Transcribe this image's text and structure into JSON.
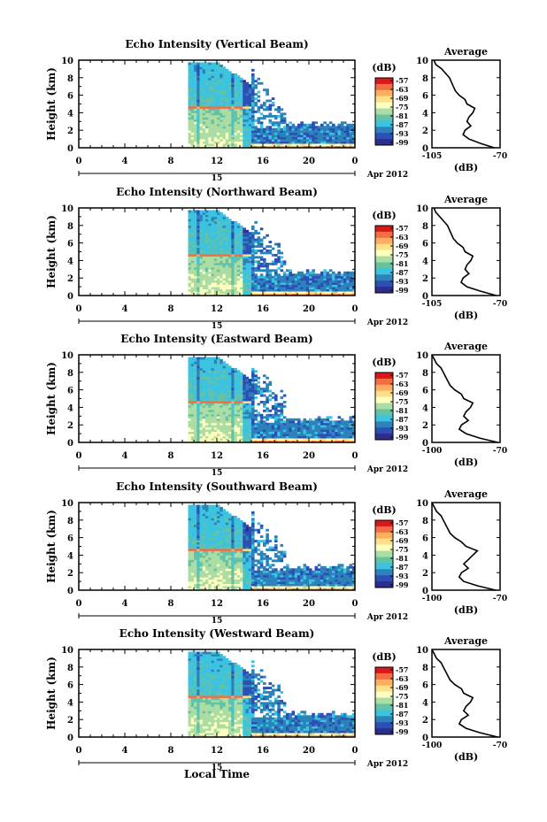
{
  "figure": {
    "date_label": "Apr 2012",
    "day_label": "15",
    "xlabel_bottom": "Local Time",
    "colorbar_unit": "(dB)",
    "colorbar_ticks": [
      "-57",
      "-63",
      "-69",
      "-75",
      "-81",
      "-87",
      "-93",
      "-99"
    ],
    "colorbar_colors": [
      "#d7191c",
      "#f46d43",
      "#fdae61",
      "#fee08b",
      "#ffffbf",
      "#abdda4",
      "#66c2a5",
      "#3cc3e0",
      "#2b83ba",
      "#2c4fb6",
      "#2d2d8c"
    ]
  },
  "chart_data": [
    {
      "type": "heatmap",
      "title": "Echo Intensity (Vertical Beam)",
      "ylabel": "Height (km)",
      "xlim": [
        0,
        24
      ],
      "ylim": [
        0,
        10
      ],
      "xticks": [
        "0",
        "4",
        "8",
        "12",
        "16",
        "20",
        "0"
      ],
      "yticks": [
        "0",
        "2",
        "4",
        "6",
        "8",
        "10"
      ],
      "description_data": "echo from ~9.5 LT to 24 LT; strongest below 4.5 km between 9.5 and 15 LT",
      "average": {
        "title": "Average",
        "xlabel": "(dB)",
        "xlim": [
          -105,
          -70
        ],
        "xticks": [
          "-105",
          "-70"
        ],
        "yticks": [
          "0",
          "2",
          "4",
          "6",
          "8",
          "10"
        ],
        "height_km": [
          0,
          0.5,
          1,
          1.5,
          2,
          2.5,
          3,
          3.5,
          4,
          4.5,
          5,
          5.5,
          6,
          6.5,
          7,
          7.5,
          8,
          8.5,
          9,
          9.5,
          10
        ],
        "db": [
          -73,
          -80,
          -86,
          -89,
          -88,
          -85,
          -87,
          -86,
          -84,
          -83,
          -87,
          -88,
          -91,
          -93,
          -94,
          -95,
          -96,
          -98,
          -100,
          -103,
          -104
        ]
      }
    },
    {
      "type": "heatmap",
      "title": "Echo Intensity (Northward Beam)",
      "ylabel": "Height (km)",
      "xlim": [
        0,
        24
      ],
      "ylim": [
        0,
        10
      ],
      "xticks": [
        "0",
        "4",
        "8",
        "12",
        "16",
        "20",
        "0"
      ],
      "yticks": [
        "0",
        "2",
        "4",
        "6",
        "8",
        "10"
      ],
      "average": {
        "title": "Average",
        "xlabel": "(dB)",
        "xlim": [
          -105,
          -70
        ],
        "xticks": [
          "-105",
          "-70"
        ],
        "yticks": [
          "0",
          "2",
          "4",
          "6",
          "8",
          "10"
        ],
        "height_km": [
          0,
          0.5,
          1,
          1.5,
          2,
          2.5,
          3,
          3.5,
          4,
          4.5,
          5,
          5.5,
          6,
          6.5,
          7,
          7.5,
          8,
          8.5,
          9,
          9.5,
          10
        ],
        "db": [
          -72,
          -80,
          -87,
          -90,
          -89,
          -86,
          -88,
          -87,
          -85,
          -84,
          -88,
          -89,
          -92,
          -94,
          -95,
          -96,
          -97,
          -99,
          -101,
          -103,
          -104
        ]
      }
    },
    {
      "type": "heatmap",
      "title": "Echo Intensity (Eastward Beam)",
      "ylabel": "Height (km)",
      "xlim": [
        0,
        24
      ],
      "ylim": [
        0,
        10
      ],
      "xticks": [
        "0",
        "4",
        "8",
        "12",
        "16",
        "20",
        "0"
      ],
      "yticks": [
        "0",
        "2",
        "4",
        "6",
        "8",
        "10"
      ],
      "average": {
        "title": "Average",
        "xlabel": "(dB)",
        "xlim": [
          -100,
          -70
        ],
        "xticks": [
          "-100",
          "-70"
        ],
        "yticks": [
          "0",
          "2",
          "4",
          "6",
          "8",
          "10"
        ],
        "height_km": [
          0,
          0.5,
          1,
          1.5,
          2,
          2.5,
          3,
          3.5,
          4,
          4.5,
          5,
          5.5,
          6,
          6.5,
          7,
          7.5,
          8,
          8.5,
          9,
          9.5,
          10
        ],
        "db": [
          -71,
          -79,
          -85,
          -88,
          -87,
          -84,
          -86,
          -85,
          -83,
          -82,
          -86,
          -87,
          -90,
          -92,
          -93,
          -94,
          -95,
          -96,
          -98,
          -99,
          -100
        ]
      }
    },
    {
      "type": "heatmap",
      "title": "Echo Intensity (Southward Beam)",
      "ylabel": "Height (km)",
      "xlim": [
        0,
        24
      ],
      "ylim": [
        0,
        10
      ],
      "xticks": [
        "0",
        "4",
        "8",
        "12",
        "16",
        "20",
        "0"
      ],
      "yticks": [
        "0",
        "2",
        "4",
        "6",
        "8",
        "10"
      ],
      "average": {
        "title": "Average",
        "xlabel": "(dB)",
        "xlim": [
          -100,
          -70
        ],
        "xticks": [
          "-100",
          "-70"
        ],
        "yticks": [
          "0",
          "2",
          "4",
          "6",
          "8",
          "10"
        ],
        "height_km": [
          0,
          0.5,
          1,
          1.5,
          2,
          2.5,
          3,
          3.5,
          4,
          4.5,
          5,
          5.5,
          6,
          6.5,
          7,
          7.5,
          8,
          8.5,
          9,
          9.5,
          10
        ],
        "db": [
          -72,
          -80,
          -86,
          -88,
          -87,
          -84,
          -86,
          -84,
          -82,
          -80,
          -85,
          -87,
          -90,
          -92,
          -93,
          -94,
          -95,
          -96,
          -98,
          -99,
          -100
        ]
      }
    },
    {
      "type": "heatmap",
      "title": "Echo Intensity (Westward Beam)",
      "ylabel": "Height (km)",
      "xlim": [
        0,
        24
      ],
      "ylim": [
        0,
        10
      ],
      "xticks": [
        "0",
        "4",
        "8",
        "12",
        "16",
        "20",
        "0"
      ],
      "yticks": [
        "0",
        "2",
        "4",
        "6",
        "8",
        "10"
      ],
      "average": {
        "title": "Average",
        "xlabel": "(dB)",
        "xlim": [
          -100,
          -70
        ],
        "xticks": [
          "-100",
          "-70"
        ],
        "yticks": [
          "0",
          "2",
          "4",
          "6",
          "8",
          "10"
        ],
        "height_km": [
          0,
          0.5,
          1,
          1.5,
          2,
          2.5,
          3,
          3.5,
          4,
          4.5,
          5,
          5.5,
          6,
          6.5,
          7,
          7.5,
          8,
          8.5,
          9,
          9.5,
          10
        ],
        "db": [
          -71,
          -79,
          -85,
          -88,
          -87,
          -84,
          -86,
          -85,
          -83,
          -82,
          -86,
          -87,
          -90,
          -92,
          -93,
          -94,
          -95,
          -96,
          -98,
          -99,
          -100
        ]
      }
    }
  ]
}
